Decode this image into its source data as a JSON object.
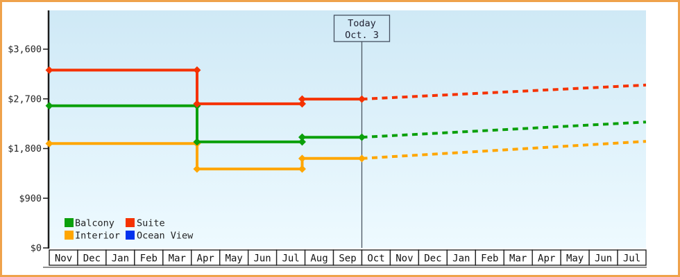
{
  "frame": {
    "border_color": "#efa24b",
    "background": "#ffffff"
  },
  "chart_data": {
    "type": "line",
    "title": "",
    "currency": "USD",
    "ylim": [
      0,
      3600
    ],
    "grid": false,
    "y_ticks": [
      {
        "label": "$3,600",
        "value": 3600
      },
      {
        "label": "$2,700",
        "value": 2700
      },
      {
        "label": "$1,800",
        "value": 1800
      },
      {
        "label": "$900",
        "value": 900
      },
      {
        "label": "$0",
        "value": 0
      }
    ],
    "x_months": [
      "Nov",
      "Dec",
      "Jan",
      "Feb",
      "Mar",
      "Apr",
      "May",
      "Jun",
      "Jul",
      "Aug",
      "Sep",
      "Oct",
      "Nov",
      "Dec",
      "Jan",
      "Feb",
      "Mar",
      "Apr",
      "May",
      "Jun",
      "Jul"
    ],
    "today_marker": {
      "line1": "Today",
      "line2": "Oct. 3",
      "month_index": 11
    },
    "series": [
      {
        "name": "Interior",
        "color": "#ffa600",
        "history": [
          [
            0,
            1890
          ],
          [
            5.2,
            1890
          ],
          [
            5.2,
            1430
          ],
          [
            8.9,
            1430
          ],
          [
            8.9,
            1620
          ],
          [
            11,
            1620
          ]
        ],
        "forecast": [
          [
            11,
            1620
          ],
          [
            21,
            1930
          ]
        ]
      },
      {
        "name": "Balcony",
        "color": "#0ba00b",
        "history": [
          [
            0,
            2575
          ],
          [
            5.2,
            2575
          ],
          [
            5.2,
            1920
          ],
          [
            8.9,
            1920
          ],
          [
            8.9,
            2005
          ],
          [
            11,
            2005
          ]
        ],
        "forecast": [
          [
            11,
            2005
          ],
          [
            21,
            2280
          ]
        ]
      },
      {
        "name": "Suite",
        "color": "#f53200",
        "history": [
          [
            0,
            3220
          ],
          [
            5.2,
            3220
          ],
          [
            5.2,
            2610
          ],
          [
            8.9,
            2610
          ],
          [
            8.9,
            2695
          ],
          [
            11,
            2695
          ]
        ],
        "forecast": [
          [
            11,
            2695
          ],
          [
            21,
            2950
          ]
        ]
      },
      {
        "name": "Ocean View",
        "color": "#0333ee",
        "history": [],
        "forecast": []
      }
    ],
    "legend_rows": [
      [
        "Balcony",
        "Suite"
      ],
      [
        "Interior",
        "Ocean View"
      ]
    ],
    "legend_position": "bottom-left-inside",
    "colors": {
      "plot_bg_top": "#cfe9f6",
      "plot_bg_bottom": "#eefaff",
      "axis": "#1b1b1b",
      "month_cell_bg": "#ffffff",
      "month_cell_border": "#222222",
      "today_line": "#4a5560"
    }
  }
}
